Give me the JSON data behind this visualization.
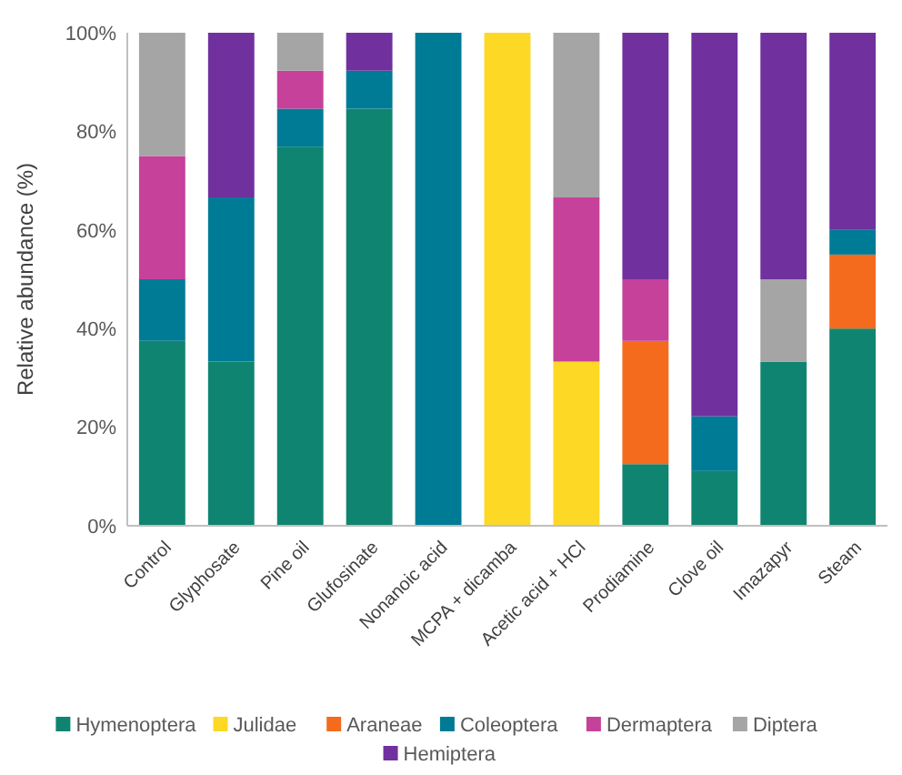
{
  "chart_data": {
    "type": "bar",
    "stacked": true,
    "ylabel": "Relative abundance (%)",
    "categories": [
      "Control",
      "Glyphosate",
      "Pine oil",
      "Glufosinate",
      "Nonanoic acid",
      "MCPA + dicamba",
      "Acetic acid + HCl",
      "Prodiamine",
      "Clove oil",
      "Imazapyr",
      "Steam"
    ],
    "ylim": [
      0,
      100
    ],
    "yticks": [
      {
        "value": 0,
        "label": "0%"
      },
      {
        "value": 20,
        "label": "20%"
      },
      {
        "value": 40,
        "label": "40%"
      },
      {
        "value": 60,
        "label": "60%"
      },
      {
        "value": 80,
        "label": "80%"
      },
      {
        "value": 100,
        "label": "100%"
      }
    ],
    "grid": false,
    "legend": "bottom",
    "series": [
      {
        "name": "Hymenoptera",
        "color": "#0f8571",
        "values": [
          37.5,
          33.3,
          76.9,
          84.6,
          0,
          0,
          0,
          12.5,
          11.1,
          33.3,
          40
        ]
      },
      {
        "name": "Julidae",
        "color": "#fdd825",
        "values": [
          0,
          0,
          0,
          0,
          0,
          100,
          33.3,
          0,
          0,
          0,
          0
        ]
      },
      {
        "name": "Araneae",
        "color": "#f56b1e",
        "values": [
          0,
          0,
          0,
          0,
          0,
          0,
          0,
          25,
          0,
          0,
          15
        ]
      },
      {
        "name": "Coleoptera",
        "color": "#007b96",
        "values": [
          12.5,
          33.3,
          7.7,
          7.7,
          100,
          0,
          0,
          0,
          11.1,
          0,
          5
        ]
      },
      {
        "name": "Dermaptera",
        "color": "#c6419a",
        "values": [
          25,
          0,
          7.7,
          0,
          0,
          0,
          33.3,
          12.5,
          0,
          0,
          0
        ]
      },
      {
        "name": "Diptera",
        "color": "#a5a5a5",
        "values": [
          25,
          0,
          7.7,
          0,
          0,
          0,
          33.4,
          0,
          0,
          16.7,
          0
        ]
      },
      {
        "name": "Hemiptera",
        "color": "#70309e",
        "values": [
          0,
          33.4,
          0,
          7.7,
          0,
          0,
          0,
          50,
          77.8,
          50,
          40
        ]
      }
    ]
  }
}
